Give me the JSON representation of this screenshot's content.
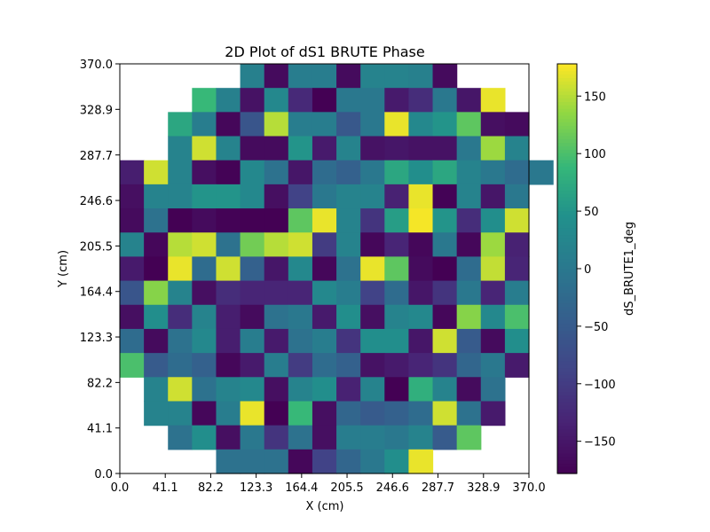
{
  "chart_data": {
    "type": "heatmap",
    "title": "2D Plot of dS1 BRUTE Phase",
    "xlabel": "X (cm)",
    "ylabel": "Y (cm)",
    "colorbar_label": "dS_BRUTE1_deg",
    "colormap": "viridis",
    "xlim": [
      0.0,
      370.0
    ],
    "ylim": [
      0.0,
      370.0
    ],
    "xticks": [
      "0.0",
      "41.1",
      "82.2",
      "123.3",
      "164.4",
      "205.5",
      "246.6",
      "287.7",
      "328.9",
      "370.0"
    ],
    "yticks": [
      "0.0",
      "41.1",
      "82.2",
      "123.3",
      "164.4",
      "205.5",
      "246.6",
      "287.7",
      "328.9",
      "370.0"
    ],
    "color_range": [
      -178,
      178
    ],
    "colorbar_ticks": [
      -150,
      -100,
      -50,
      0,
      50,
      100,
      150
    ],
    "grid_size": [
      17,
      17
    ],
    "cell_size_cm": 21.76,
    "values_rows_top_to_bottom": [
      [
        null,
        null,
        null,
        null,
        null,
        15,
        -165,
        10,
        10,
        -165,
        20,
        20,
        15,
        -165,
        null,
        null,
        null
      ],
      [
        null,
        null,
        null,
        90,
        15,
        -155,
        30,
        -125,
        -178,
        0,
        0,
        -145,
        -120,
        0,
        -150,
        170,
        null
      ],
      [
        null,
        null,
        70,
        10,
        -170,
        -60,
        150,
        10,
        10,
        -55,
        0,
        170,
        30,
        50,
        110,
        -160,
        -165
      ],
      [
        null,
        null,
        20,
        160,
        20,
        -165,
        -165,
        50,
        -145,
        20,
        -155,
        -150,
        -155,
        -155,
        0,
        140,
        20
      ],
      [
        -140,
        160,
        20,
        -160,
        -175,
        30,
        -10,
        -150,
        -20,
        -40,
        0,
        70,
        40,
        70,
        20,
        0,
        -20,
        0
      ],
      [
        -160,
        20,
        20,
        50,
        50,
        30,
        -160,
        -90,
        0,
        20,
        20,
        -135,
        170,
        -175,
        20,
        -150,
        0
      ],
      [
        -165,
        -10,
        -178,
        -165,
        -175,
        -178,
        -178,
        110,
        170,
        20,
        -110,
        60,
        175,
        50,
        -120,
        40,
        160
      ],
      [
        20,
        -170,
        150,
        160,
        -10,
        120,
        150,
        160,
        -100,
        20,
        -170,
        -130,
        -170,
        0,
        -170,
        140,
        -135
      ],
      [
        -145,
        -178,
        170,
        -20,
        160,
        -40,
        -150,
        30,
        -170,
        -10,
        170,
        110,
        -165,
        -178,
        -20,
        155,
        -130
      ],
      [
        -60,
        130,
        20,
        -160,
        -120,
        -130,
        -130,
        -130,
        30,
        10,
        -90,
        -20,
        -150,
        -110,
        0,
        -130,
        10
      ],
      [
        -160,
        40,
        -120,
        20,
        -140,
        -165,
        -10,
        0,
        -145,
        40,
        -160,
        20,
        30,
        -170,
        130,
        30,
        100
      ],
      [
        -20,
        -165,
        -10,
        30,
        -140,
        10,
        -145,
        -10,
        10,
        -110,
        40,
        40,
        -150,
        160,
        -50,
        -165,
        40
      ],
      [
        100,
        -50,
        -20,
        -40,
        -170,
        -145,
        10,
        -100,
        -20,
        -40,
        -155,
        -145,
        -130,
        -110,
        -30,
        0,
        -145
      ],
      [
        null,
        20,
        160,
        -10,
        20,
        30,
        -160,
        20,
        40,
        -135,
        20,
        -178,
        80,
        20,
        -165,
        -10,
        null
      ],
      [
        null,
        20,
        20,
        -170,
        10,
        170,
        -178,
        90,
        -160,
        -30,
        -50,
        -40,
        -20,
        160,
        -10,
        -145,
        null
      ],
      [
        null,
        null,
        -10,
        40,
        -160,
        0,
        -110,
        -10,
        -160,
        10,
        10,
        0,
        20,
        -50,
        110,
        null,
        null
      ],
      [
        null,
        null,
        null,
        null,
        -10,
        -10,
        -10,
        -170,
        -90,
        -30,
        0,
        40,
        170,
        null,
        null,
        null,
        null
      ]
    ]
  }
}
